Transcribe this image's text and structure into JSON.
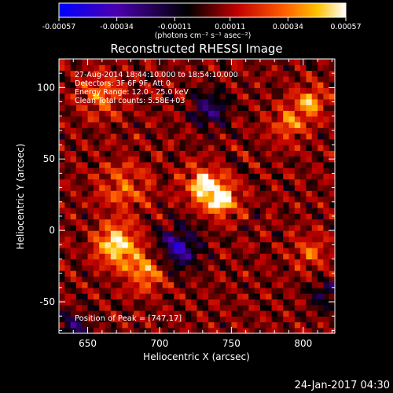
{
  "chart_data": {
    "type": "heatmap",
    "title": "Reconstructed RHESSI Image",
    "xlabel": "Heliocentric X (arcsec)",
    "ylabel": "Heliocentric Y (arcsec)",
    "xlim": [
      630,
      822
    ],
    "ylim": [
      -72,
      120
    ],
    "xticks": [
      650,
      700,
      750,
      800
    ],
    "yticks": [
      -50,
      0,
      50,
      100
    ],
    "colorbar": {
      "min": -0.00057,
      "max": 0.00057,
      "ticks": [
        "-0.00057",
        "-0.00034",
        "-0.00011",
        "0.00011",
        "0.00034",
        "0.00057"
      ],
      "units_label": "(photons cm⁻² s⁻¹ asec⁻²)",
      "colormap": "blue-purple-black-red-orange-yellow-white"
    },
    "annotations": [
      "27-Aug-2014 18:44:10.000 to 18:54:10.000",
      "Detectors: 3F 6F 9F, Att 0",
      "Energy Range: 12.0 - 25.0 keV",
      "Clean     Total counts: 5.58E+03"
    ],
    "peak_label": "Position of Peak = [747,17]",
    "peak": [
      747,
      17
    ],
    "timestamp": "24-Jan-2017 04:30",
    "sources": [
      {
        "x": 743,
        "y": 22,
        "amp": 1.0,
        "sigma": 7
      },
      {
        "x": 730,
        "y": 32,
        "amp": 0.75,
        "sigma": 8
      },
      {
        "x": 670,
        "y": -10,
        "amp": 0.85,
        "sigma": 9
      },
      {
        "x": 690,
        "y": -28,
        "amp": 0.55,
        "sigma": 9
      },
      {
        "x": 805,
        "y": 90,
        "amp": 0.6,
        "sigma": 7
      },
      {
        "x": 790,
        "y": 75,
        "amp": 0.45,
        "sigma": 8
      },
      {
        "x": 660,
        "y": 95,
        "amp": 0.4,
        "sigma": 10
      },
      {
        "x": 675,
        "y": 30,
        "amp": 0.35,
        "sigma": 12
      },
      {
        "x": 805,
        "y": -15,
        "amp": 0.35,
        "sigma": 8
      }
    ],
    "negative_regions": [
      {
        "x": 713,
        "y": -12,
        "amp": 0.6,
        "sigma": 10
      },
      {
        "x": 735,
        "y": 85,
        "amp": 0.45,
        "sigma": 9
      },
      {
        "x": 640,
        "y": -68,
        "amp": 0.4,
        "sigma": 8
      },
      {
        "x": 815,
        "y": -45,
        "amp": 0.3,
        "sigma": 8
      }
    ]
  }
}
